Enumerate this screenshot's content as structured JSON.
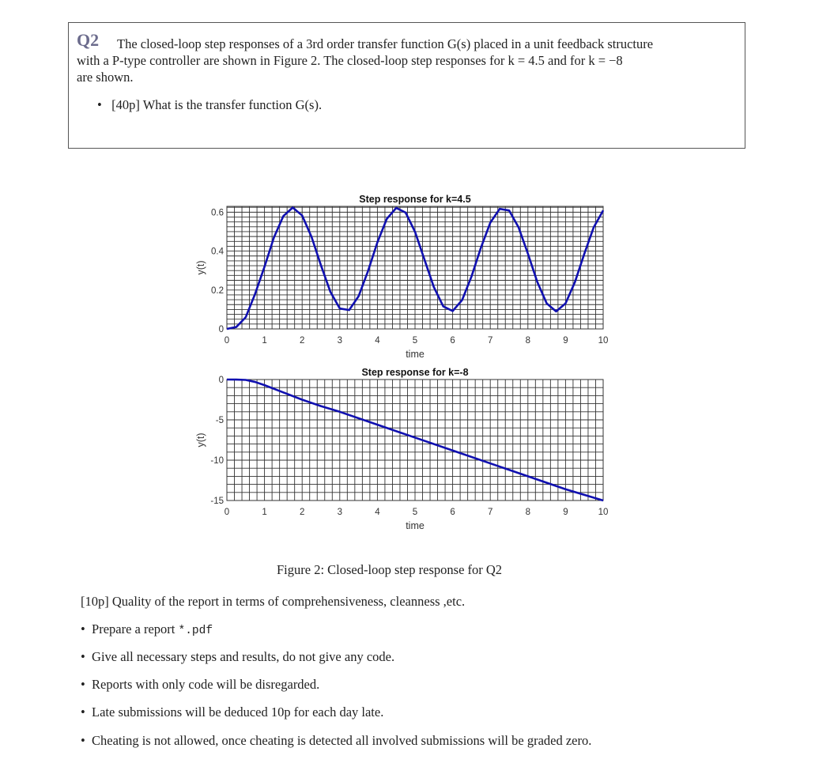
{
  "question": {
    "number": "Q2",
    "line1": "The closed-loop step responses of a 3rd order transfer function G(s) placed in a unit feedback structure",
    "line2": "with a P-type controller are shown in Figure 2. The closed-loop step responses for k = 4.5 and for k = −8",
    "line3": "are shown.",
    "bullet": "[40p] What is the transfer function G(s)."
  },
  "figure_caption": "Figure 2: Closed-loop step response for Q2",
  "quality": "[10p] Quality of the report in terms of comprehensiveness, cleanness ,etc.",
  "bullets": [
    {
      "text": "Prepare a report ",
      "code": "*.pdf"
    },
    {
      "text": "Give all necessary steps and results, do not give any code."
    },
    {
      "text": "Reports with only code will be disregarded."
    },
    {
      "text": "Late submissions will be deduced 10p for each day late."
    },
    {
      "text": "Cheating is not allowed, once cheating is detected all involved submissions will be graded zero."
    }
  ],
  "chart_data": [
    {
      "type": "line",
      "title": "Step response for k=4.5",
      "xlabel": "time",
      "ylabel": "y(t)",
      "xlim": [
        0,
        10
      ],
      "ylim": [
        0,
        0.63
      ],
      "xticks": [
        0,
        1,
        2,
        3,
        4,
        5,
        6,
        7,
        8,
        9,
        10
      ],
      "yticks": [
        0,
        0.2,
        0.4,
        0.6
      ],
      "ytick_labels": [
        "0",
        "0.2",
        "0.4",
        "0.6"
      ],
      "grid": true,
      "minor_grid_x": 0.2,
      "minor_grid_y": 0.025,
      "color": "#1010b0",
      "x": [
        0,
        0.25,
        0.5,
        0.75,
        1,
        1.25,
        1.5,
        1.75,
        2,
        2.25,
        2.5,
        2.75,
        3,
        3.25,
        3.5,
        3.75,
        4,
        4.25,
        4.5,
        4.75,
        5,
        5.25,
        5.5,
        5.75,
        6,
        6.25,
        6.5,
        6.75,
        7,
        7.25,
        7.5,
        7.75,
        8,
        8.25,
        8.5,
        8.75,
        9,
        9.25,
        9.5,
        9.75,
        10
      ],
      "y": [
        0,
        0.01,
        0.06,
        0.18,
        0.32,
        0.47,
        0.58,
        0.624,
        0.583,
        0.473,
        0.327,
        0.191,
        0.105,
        0.097,
        0.168,
        0.297,
        0.445,
        0.566,
        0.622,
        0.598,
        0.499,
        0.357,
        0.215,
        0.116,
        0.092,
        0.148,
        0.269,
        0.417,
        0.546,
        0.617,
        0.609,
        0.523,
        0.387,
        0.241,
        0.131,
        0.09,
        0.131,
        0.241,
        0.387,
        0.523,
        0.609
      ]
    },
    {
      "type": "line",
      "title": "Step response for k=-8",
      "xlabel": "time",
      "ylabel": "y(t)",
      "xlim": [
        0,
        10
      ],
      "ylim": [
        -15,
        0
      ],
      "xticks": [
        0,
        1,
        2,
        3,
        4,
        5,
        6,
        7,
        8,
        9,
        10
      ],
      "yticks": [
        -15,
        -10,
        -5,
        0
      ],
      "ytick_labels": [
        "-15",
        "-10",
        "-5",
        "0"
      ],
      "grid": true,
      "minor_grid_x": 0.2,
      "minor_grid_y": 1,
      "color": "#1010b0",
      "x": [
        0,
        0.25,
        0.5,
        0.75,
        1,
        1.5,
        2,
        2.5,
        3,
        4,
        5,
        6,
        7,
        8,
        9,
        10
      ],
      "y": [
        0,
        -0.01,
        -0.05,
        -0.3,
        -0.7,
        -1.6,
        -2.5,
        -3.3,
        -4.0,
        -5.6,
        -7.2,
        -8.8,
        -10.4,
        -12.0,
        -13.6,
        -15.0
      ]
    }
  ]
}
